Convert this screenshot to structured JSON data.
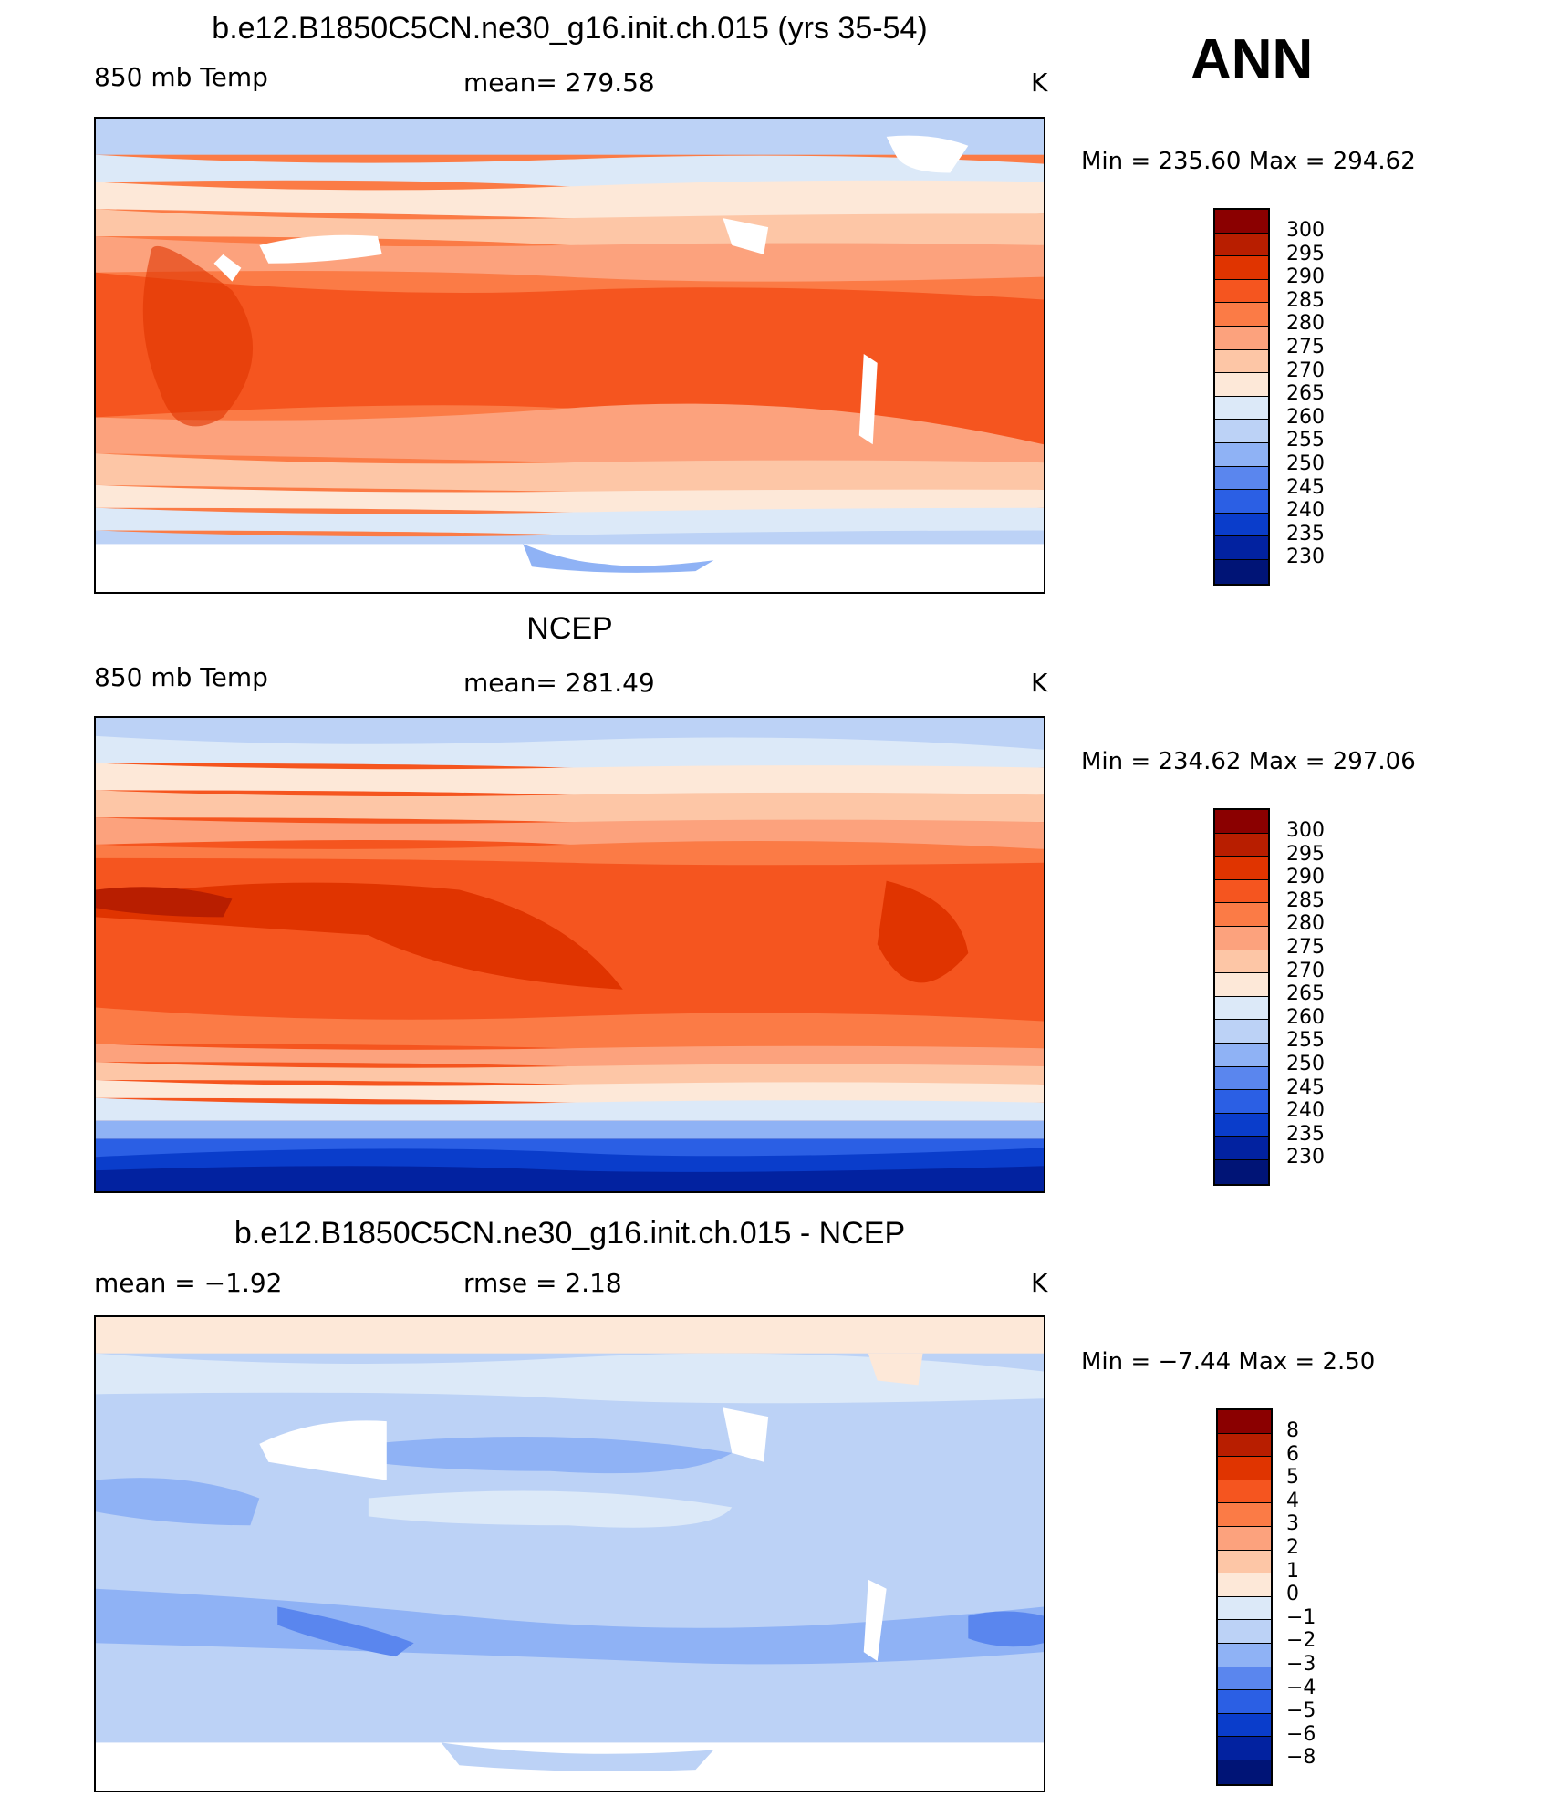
{
  "ann_label": "ANN",
  "panels": [
    {
      "title": "b.e12.B1850C5CN.ne30_g16.init.ch.015 (yrs 35-54)",
      "left_label": "850 mb Temp",
      "center_label": "mean=  279.58",
      "units": "K",
      "minmax": "Min  =  235.60  Max  =  294.62",
      "colorbar_labels": [
        "300",
        "295",
        "290",
        "285",
        "280",
        "275",
        "270",
        "265",
        "260",
        "255",
        "250",
        "245",
        "240",
        "235",
        "230"
      ],
      "colorbar_colors": [
        "#8b0000",
        "#b81e00",
        "#e03400",
        "#f5551f",
        "#fb7b46",
        "#fca27d",
        "#fdc6a6",
        "#fde8d8",
        "#dce9f8",
        "#bcd2f6",
        "#8fb2f5",
        "#5a86ee",
        "#2b5fe4",
        "#0a3dcb",
        "#0222a0",
        "#001476"
      ]
    },
    {
      "title": "NCEP",
      "left_label": "850 mb Temp",
      "center_label": "mean=  281.49",
      "units": "K",
      "minmax": "Min  =  234.62  Max  =  297.06",
      "colorbar_labels": [
        "300",
        "295",
        "290",
        "285",
        "280",
        "275",
        "270",
        "265",
        "260",
        "255",
        "250",
        "245",
        "240",
        "235",
        "230"
      ],
      "colorbar_colors": [
        "#8b0000",
        "#b81e00",
        "#e03400",
        "#f5551f",
        "#fb7b46",
        "#fca27d",
        "#fdc6a6",
        "#fde8d8",
        "#dce9f8",
        "#bcd2f6",
        "#8fb2f5",
        "#5a86ee",
        "#2b5fe4",
        "#0a3dcb",
        "#0222a0",
        "#001476"
      ]
    },
    {
      "title": "b.e12.B1850C5CN.ne30_g16.init.ch.015 - NCEP",
      "left_label": "mean =    −1.92",
      "center_label": "rmse =     2.18",
      "units": "K",
      "minmax": "Min  =    −7.44  Max  =     2.50",
      "colorbar_labels": [
        "8",
        "6",
        "5",
        "4",
        "3",
        "2",
        "1",
        "0",
        "−1",
        "−2",
        "−3",
        "−4",
        "−5",
        "−6",
        "−8"
      ],
      "colorbar_colors": [
        "#8b0000",
        "#b81e00",
        "#e03400",
        "#f5551f",
        "#fb7b46",
        "#fca27d",
        "#fdc6a6",
        "#fde8d8",
        "#dce9f8",
        "#bcd2f6",
        "#8fb2f5",
        "#5a86ee",
        "#2b5fe4",
        "#0a3dcb",
        "#0222a0",
        "#001476"
      ]
    }
  ]
}
